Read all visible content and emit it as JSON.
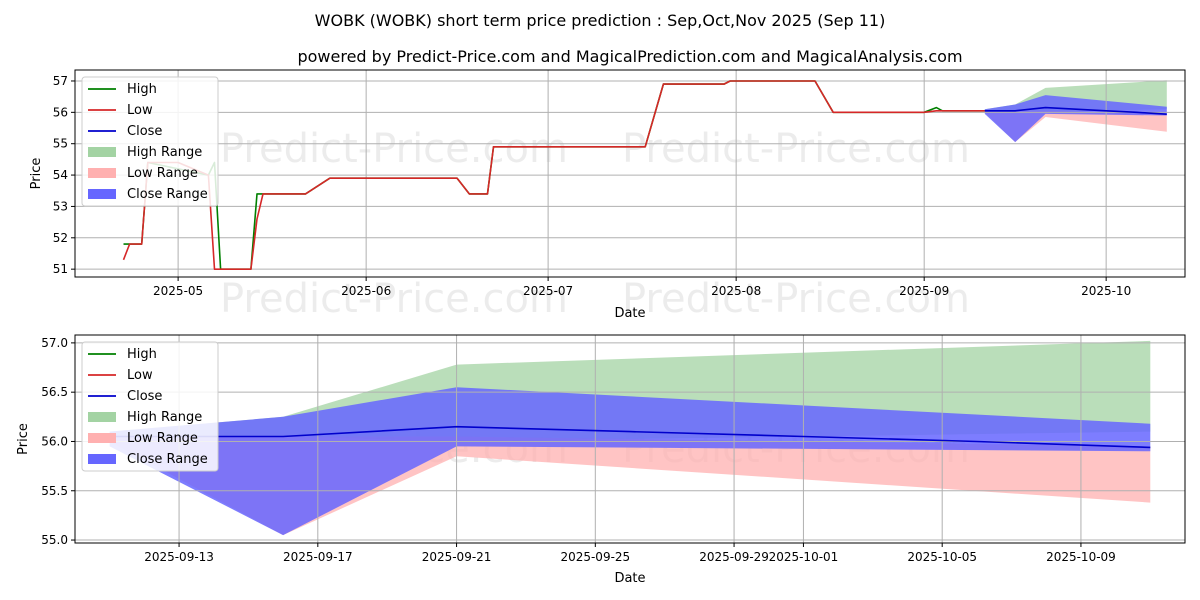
{
  "title": "WOBK (WOBK) short term price prediction : Sep,Oct,Nov 2025 (Sep 11)",
  "subtitle": "powered by Predict-Price.com and MagicalPrediction.com and MagicalAnalysis.com",
  "watermark": "Predict-Price.com",
  "colors": {
    "high": "#008000",
    "low": "#d62728",
    "close": "#0000cc",
    "high_range": "#a3d3a3",
    "low_range": "#ffb0b0",
    "close_range": "#6666ff"
  },
  "chart_data": [
    {
      "type": "line",
      "xlabel": "Date",
      "ylabel": "Price",
      "x_range": [
        "2025-04-14",
        "2025-10-14"
      ],
      "ylim": [
        50.75,
        57.35
      ],
      "grid": true,
      "legend_position": "top-left",
      "x_ticks": [
        "2025-05",
        "2025-06",
        "2025-07",
        "2025-08",
        "2025-09",
        "2025-10"
      ],
      "x_tick_dates": [
        "2025-05-01",
        "2025-06-01",
        "2025-07-01",
        "2025-08-01",
        "2025-09-01",
        "2025-10-01"
      ],
      "y_ticks": [
        51,
        52,
        53,
        54,
        55,
        56,
        57
      ],
      "legend": [
        "High",
        "Low",
        "Close",
        "High Range",
        "Low Range",
        "Close Range"
      ],
      "series": [
        {
          "name": "High",
          "points": [
            [
              "2025-04-22",
              51.8
            ],
            [
              "2025-04-23",
              51.8
            ],
            [
              "2025-04-24",
              51.8
            ],
            [
              "2025-04-25",
              51.8
            ],
            [
              "2025-04-26",
              54.4
            ],
            [
              "2025-05-06",
              54.0
            ],
            [
              "2025-05-07",
              54.4
            ],
            [
              "2025-05-08",
              51.0
            ],
            [
              "2025-05-13",
              51.0
            ],
            [
              "2025-05-14",
              53.4
            ],
            [
              "2025-05-15",
              53.4
            ],
            [
              "2025-05-22",
              53.4
            ],
            [
              "2025-05-26",
              53.9
            ],
            [
              "2025-06-16",
              53.9
            ],
            [
              "2025-06-18",
              53.4
            ],
            [
              "2025-06-21",
              53.4
            ],
            [
              "2025-06-22",
              54.9
            ],
            [
              "2025-07-17",
              54.9
            ],
            [
              "2025-07-20",
              56.9
            ],
            [
              "2025-07-30",
              56.9
            ],
            [
              "2025-07-31",
              57.0
            ],
            [
              "2025-08-14",
              57.0
            ],
            [
              "2025-08-17",
              56.0
            ],
            [
              "2025-09-01",
              56.0
            ],
            [
              "2025-09-03",
              56.15
            ],
            [
              "2025-09-04",
              56.05
            ],
            [
              "2025-09-11",
              56.05
            ]
          ]
        },
        {
          "name": "Low",
          "points": [
            [
              "2025-04-22",
              51.3
            ],
            [
              "2025-04-23",
              51.8
            ],
            [
              "2025-04-24",
              51.8
            ],
            [
              "2025-04-25",
              51.8
            ],
            [
              "2025-04-26",
              54.4
            ],
            [
              "2025-05-01",
              54.4
            ],
            [
              "2025-05-06",
              54.0
            ],
            [
              "2025-05-07",
              51.0
            ],
            [
              "2025-05-13",
              51.0
            ],
            [
              "2025-05-14",
              52.6
            ],
            [
              "2025-05-15",
              53.4
            ],
            [
              "2025-05-22",
              53.4
            ],
            [
              "2025-05-26",
              53.9
            ],
            [
              "2025-06-16",
              53.9
            ],
            [
              "2025-06-18",
              53.4
            ],
            [
              "2025-06-21",
              53.4
            ],
            [
              "2025-06-22",
              54.9
            ],
            [
              "2025-07-17",
              54.9
            ],
            [
              "2025-07-20",
              56.9
            ],
            [
              "2025-07-30",
              56.9
            ],
            [
              "2025-07-31",
              57.0
            ],
            [
              "2025-08-14",
              57.0
            ],
            [
              "2025-08-17",
              56.0
            ],
            [
              "2025-09-01",
              56.0
            ],
            [
              "2025-09-03",
              56.05
            ],
            [
              "2025-09-11",
              56.05
            ]
          ]
        },
        {
          "name": "Close",
          "points": [
            [
              "2025-09-11",
              56.05
            ],
            [
              "2025-09-16",
              56.05
            ],
            [
              "2025-09-21",
              56.15
            ],
            [
              "2025-09-26",
              56.1
            ],
            [
              "2025-10-01",
              56.05
            ],
            [
              "2025-10-06",
              56.0
            ],
            [
              "2025-10-11",
              55.94
            ]
          ]
        }
      ],
      "bands": [
        {
          "name": "High Range",
          "points": [
            [
              "2025-09-11",
              56.05,
              56.1
            ],
            [
              "2025-09-16",
              56.05,
              56.25
            ],
            [
              "2025-09-21",
              56.0,
              56.78
            ],
            [
              "2025-10-11",
              56.1,
              57.02
            ]
          ]
        },
        {
          "name": "Low Range",
          "points": [
            [
              "2025-09-11",
              56.0,
              56.05
            ],
            [
              "2025-09-16",
              55.05,
              56.05
            ],
            [
              "2025-09-21",
              55.85,
              56.05
            ],
            [
              "2025-10-11",
              55.38,
              55.95
            ]
          ]
        },
        {
          "name": "Close Range",
          "points": [
            [
              "2025-09-11",
              55.95,
              56.1
            ],
            [
              "2025-09-16",
              55.05,
              56.25
            ],
            [
              "2025-09-21",
              55.95,
              56.55
            ],
            [
              "2025-10-11",
              55.9,
              56.18
            ]
          ]
        }
      ]
    },
    {
      "type": "line",
      "xlabel": "Date",
      "ylabel": "Price",
      "x_range": [
        "2025-09-10",
        "2025-10-12"
      ],
      "ylim": [
        54.97,
        57.08
      ],
      "grid": true,
      "legend_position": "top-left",
      "x_ticks": [
        "2025-09-13",
        "2025-09-17",
        "2025-09-21",
        "2025-09-25",
        "2025-09-29",
        "2025-10-01",
        "2025-10-05",
        "2025-10-09"
      ],
      "y_ticks": [
        "55.0",
        "55.5",
        "56.0",
        "56.5",
        "57.0"
      ],
      "legend": [
        "High",
        "Low",
        "Close",
        "High Range",
        "Low Range",
        "Close Range"
      ],
      "series": [
        {
          "name": "Close",
          "points": [
            [
              "2025-09-11",
              56.05
            ],
            [
              "2025-09-16",
              56.05
            ],
            [
              "2025-09-21",
              56.15
            ],
            [
              "2025-09-26",
              56.1
            ],
            [
              "2025-10-01",
              56.05
            ],
            [
              "2025-10-06",
              56.0
            ],
            [
              "2025-10-11",
              55.94
            ]
          ]
        }
      ],
      "bands": [
        {
          "name": "High Range",
          "points": [
            [
              "2025-09-11",
              56.05,
              56.1
            ],
            [
              "2025-09-16",
              56.05,
              56.25
            ],
            [
              "2025-09-21",
              56.0,
              56.78
            ],
            [
              "2025-10-11",
              56.1,
              57.02
            ]
          ]
        },
        {
          "name": "Low Range",
          "points": [
            [
              "2025-09-11",
              56.0,
              56.05
            ],
            [
              "2025-09-16",
              55.05,
              56.05
            ],
            [
              "2025-09-21",
              55.85,
              56.05
            ],
            [
              "2025-10-11",
              55.38,
              55.95
            ]
          ]
        },
        {
          "name": "Close Range",
          "points": [
            [
              "2025-09-11",
              55.95,
              56.1
            ],
            [
              "2025-09-16",
              55.05,
              56.25
            ],
            [
              "2025-09-21",
              55.95,
              56.55
            ],
            [
              "2025-10-11",
              55.9,
              56.18
            ]
          ]
        }
      ]
    }
  ]
}
